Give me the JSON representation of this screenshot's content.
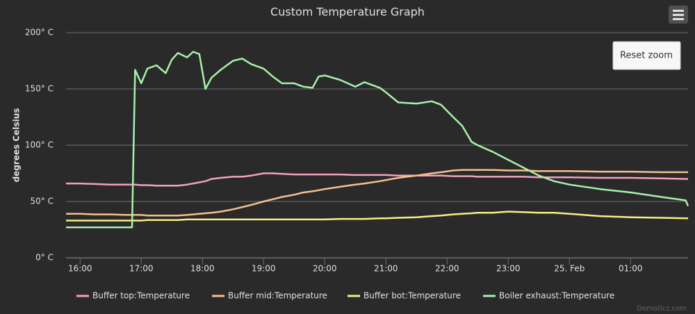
{
  "chart_data": {
    "type": "line",
    "title": "Custom Temperature Graph",
    "ylabel": "degrees Celsius",
    "reset_button": "Reset zoom",
    "credits": "Domoticz.com",
    "x": [
      15.77,
      16.0,
      16.25,
      16.5,
      16.75,
      16.85,
      16.9,
      17.0,
      17.1,
      17.25,
      17.4,
      17.5,
      17.6,
      17.75,
      17.85,
      17.95,
      18.05,
      18.15,
      18.3,
      18.5,
      18.65,
      18.8,
      19.0,
      19.15,
      19.3,
      19.5,
      19.65,
      19.8,
      19.9,
      20.0,
      20.25,
      20.5,
      20.65,
      20.9,
      21.0,
      21.2,
      21.5,
      21.75,
      21.9,
      22.1,
      22.25,
      22.4,
      22.5,
      22.75,
      23.0,
      23.25,
      23.5,
      23.75,
      24.0,
      24.5,
      25.0,
      25.5,
      25.9,
      25.94
    ],
    "xlim": [
      15.77,
      25.94
    ],
    "xticks": [
      {
        "value": 16,
        "label": "16:00"
      },
      {
        "value": 17,
        "label": "17:00"
      },
      {
        "value": 18,
        "label": "18:00"
      },
      {
        "value": 19,
        "label": "19:00"
      },
      {
        "value": 20,
        "label": "20:00"
      },
      {
        "value": 21,
        "label": "21:00"
      },
      {
        "value": 22,
        "label": "22:00"
      },
      {
        "value": 23,
        "label": "23:00"
      },
      {
        "value": 24,
        "label": "25. Feb"
      },
      {
        "value": 25,
        "label": "01:00"
      }
    ],
    "ylim": [
      0,
      200
    ],
    "yticks": [
      {
        "value": 0,
        "label": "0° C"
      },
      {
        "value": 50,
        "label": "50° C"
      },
      {
        "value": 100,
        "label": "100° C"
      },
      {
        "value": 150,
        "label": "150° C"
      },
      {
        "value": 200,
        "label": "200° C"
      }
    ],
    "grid": true,
    "legend": "bottom",
    "series": [
      {
        "name": "Buffer top:Temperature",
        "color": "#f4a0c4",
        "values": [
          66,
          66,
          65.5,
          65,
          65,
          65,
          65,
          64.5,
          64.5,
          64,
          64,
          64,
          64,
          65,
          66,
          67,
          68,
          70,
          71,
          72,
          72,
          73,
          75,
          75,
          74.5,
          74,
          74,
          74,
          74,
          74,
          74,
          73.5,
          73.5,
          73.5,
          73.5,
          73,
          73,
          73,
          73,
          72.5,
          72.5,
          72.5,
          72,
          72,
          72,
          72,
          71.5,
          71.5,
          71.5,
          71,
          71,
          70.5,
          70,
          70
        ]
      },
      {
        "name": "Buffer mid:Temperature",
        "color": "#f8c08c",
        "values": [
          39,
          39,
          38.5,
          38.5,
          38,
          38,
          38,
          38,
          37.5,
          37.5,
          37.5,
          37.5,
          37.5,
          38,
          38.5,
          39,
          39.5,
          40,
          41,
          43,
          45,
          47,
          50,
          52,
          54,
          56,
          58,
          59,
          60,
          61,
          63,
          65,
          66,
          68,
          69,
          71,
          73,
          75,
          76,
          77.5,
          78,
          78,
          78,
          78,
          77.5,
          77.5,
          77,
          77,
          77,
          76.5,
          76.5,
          76,
          76,
          76
        ]
      },
      {
        "name": "Buffer bot:Temperature",
        "color": "#f6f084",
        "values": [
          33,
          33,
          33,
          33,
          33,
          33,
          33,
          33,
          33.5,
          33.5,
          33.5,
          33.5,
          33.5,
          34,
          34,
          34,
          34,
          34,
          34,
          34,
          34,
          34,
          34,
          34,
          34,
          34,
          34,
          34,
          34,
          34,
          34.5,
          34.5,
          34.5,
          35,
          35,
          35.5,
          36,
          37,
          37.5,
          38.5,
          39,
          39.5,
          40,
          40,
          41,
          40.5,
          40,
          40,
          39,
          37,
          36,
          35.5,
          35,
          35
        ]
      },
      {
        "name": "Boiler exhaust:Temperature",
        "color": "#a9f2ab",
        "values": [
          27,
          27,
          27,
          27,
          27,
          27,
          167,
          155,
          168,
          171,
          164,
          176,
          182,
          178,
          183,
          181,
          150,
          160,
          167,
          175,
          177,
          172,
          168,
          161,
          155,
          155,
          152,
          151,
          161,
          162,
          158,
          152,
          156,
          151,
          147,
          138,
          137,
          139,
          136,
          125,
          117,
          103,
          100,
          94,
          87,
          80,
          73,
          68,
          65,
          61,
          58,
          54,
          51,
          46
        ]
      }
    ]
  }
}
